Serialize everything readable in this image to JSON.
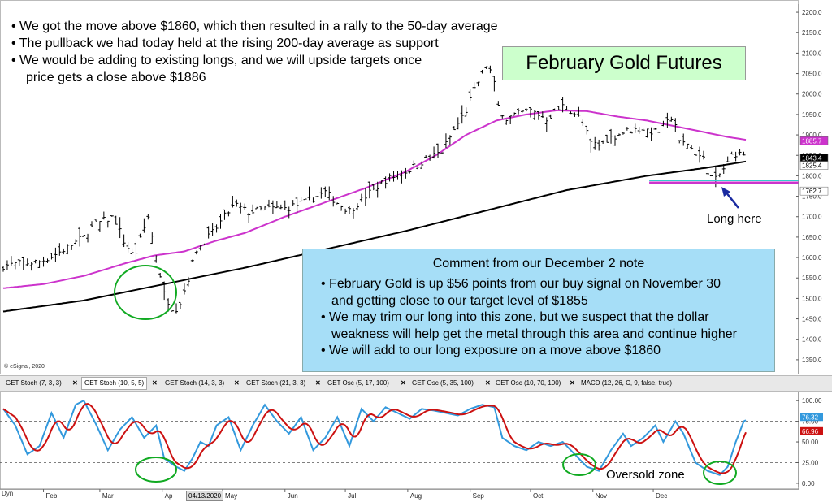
{
  "annotations": {
    "notes": [
      "• We got the move above $1860, which then resulted in a rally to the 50-day average",
      "• The pullback we had today held at the rising 200-day average as support",
      "• We would be adding to existing longs, and we will upside targets once",
      "price gets a close above $1886"
    ],
    "title": "February Gold Futures",
    "comment_head": "Comment from our December 2 note",
    "comment_lines": [
      "• February Gold is up $56 points from our buy signal on November 30",
      "and getting close to our target level of $1855",
      "• We may trim our long into this zone, but we suspect that the dollar",
      "weakness will help get the metal through this area and continue higher",
      "• We will add to our long exposure on a move above $1860"
    ],
    "long_here": "Long here",
    "oversold": "Oversold zone",
    "esignal": "© eSignal, 2020",
    "dyn": "Dyn",
    "date_box": "04/13/2020"
  },
  "tabs": [
    "GET Stoch (7, 3, 3)",
    "GET Stoch (10, 5, 5)",
    "GET Stoch (14, 3, 3)",
    "GET Stoch (21, 3, 3)",
    "GET Osc (5, 17, 100)",
    "GET Osc (5, 35, 100)",
    "GET Osc (10, 70, 100)",
    "MACD (12, 26, C, 9, false, true)"
  ],
  "colors": {
    "price": "#000000",
    "ma50": "#cc33cc",
    "ma200": "#000000",
    "stoch_fast": "#3399dd",
    "stoch_slow": "#cc1111",
    "circle": "#11aa22",
    "support_line": "#cc33cc",
    "support_line2": "#33cccc",
    "arrow": "#1a2aa0"
  },
  "chart_data": [
    {
      "type": "ohlc",
      "x_labels": [
        "Feb",
        "Mar",
        "Ap",
        "May",
        "Jun",
        "Jul",
        "Aug",
        "Sep",
        "Oct",
        "Nov",
        "Dec"
      ],
      "ylim": [
        1320,
        2220
      ],
      "y_ticks": [
        1350,
        1400,
        1450,
        1500,
        1550,
        1600,
        1650,
        1700,
        1750,
        1800,
        1850,
        1900,
        1950,
        2000,
        2050,
        2100,
        2150,
        2200
      ],
      "y_tick_labels": [
        "1350.0",
        "1400.0",
        "1450.0",
        "1500.0",
        "1550.0",
        "1600.0",
        "1650.0",
        "1700.0",
        "1750.0",
        "1800.0",
        "1850.0",
        "1900.0",
        "1950.0",
        "2000.0",
        "2050.0",
        "2100.0",
        "2150.0",
        "2200.0"
      ],
      "price_keys": [
        [
          0,
          1580
        ],
        [
          8,
          1585
        ],
        [
          18,
          1590
        ],
        [
          25,
          1605
        ],
        [
          32,
          1625
        ],
        [
          40,
          1650
        ],
        [
          45,
          1680
        ],
        [
          55,
          1700
        ],
        [
          60,
          1640
        ],
        [
          65,
          1600
        ],
        [
          72,
          1700
        ],
        [
          80,
          1510
        ],
        [
          85,
          1470
        ],
        [
          88,
          1490
        ],
        [
          92,
          1550
        ],
        [
          96,
          1620
        ],
        [
          100,
          1640
        ],
        [
          104,
          1660
        ],
        [
          110,
          1700
        ],
        [
          115,
          1730
        ],
        [
          122,
          1710
        ],
        [
          130,
          1720
        ],
        [
          140,
          1720
        ],
        [
          150,
          1735
        ],
        [
          160,
          1760
        ],
        [
          167,
          1730
        ],
        [
          172,
          1715
        ],
        [
          180,
          1750
        ],
        [
          190,
          1790
        ],
        [
          200,
          1810
        ],
        [
          210,
          1840
        ],
        [
          218,
          1860
        ],
        [
          225,
          1920
        ],
        [
          230,
          1960
        ],
        [
          235,
          2020
        ],
        [
          240,
          2070
        ],
        [
          243,
          2050
        ],
        [
          246,
          1970
        ],
        [
          250,
          1940
        ],
        [
          255,
          1950
        ],
        [
          262,
          1960
        ],
        [
          270,
          1940
        ],
        [
          278,
          1970
        ],
        [
          282,
          1960
        ],
        [
          287,
          1940
        ],
        [
          292,
          1880
        ],
        [
          296,
          1875
        ],
        [
          300,
          1890
        ],
        [
          305,
          1900
        ],
        [
          310,
          1910
        ],
        [
          318,
          1915
        ],
        [
          325,
          1905
        ],
        [
          330,
          1930
        ],
        [
          333,
          1950
        ],
        [
          336,
          1880
        ],
        [
          340,
          1880
        ],
        [
          343,
          1860
        ],
        [
          348,
          1840
        ],
        [
          351,
          1800
        ],
        [
          354,
          1790
        ],
        [
          357,
          1810
        ],
        [
          360,
          1830
        ],
        [
          363,
          1860
        ],
        [
          365,
          1850
        ],
        [
          369,
          1855
        ]
      ],
      "ma50_keys": [
        [
          0,
          1525
        ],
        [
          20,
          1535
        ],
        [
          40,
          1555
        ],
        [
          60,
          1585
        ],
        [
          75,
          1605
        ],
        [
          90,
          1615
        ],
        [
          105,
          1640
        ],
        [
          120,
          1660
        ],
        [
          140,
          1700
        ],
        [
          160,
          1735
        ],
        [
          180,
          1770
        ],
        [
          200,
          1810
        ],
        [
          215,
          1850
        ],
        [
          230,
          1900
        ],
        [
          245,
          1935
        ],
        [
          260,
          1950
        ],
        [
          275,
          1960
        ],
        [
          290,
          1958
        ],
        [
          305,
          1945
        ],
        [
          320,
          1935
        ],
        [
          335,
          1920
        ],
        [
          350,
          1905
        ],
        [
          360,
          1895
        ],
        [
          369,
          1888
        ]
      ],
      "ma200_keys": [
        [
          0,
          1468
        ],
        [
          40,
          1495
        ],
        [
          80,
          1535
        ],
        [
          120,
          1575
        ],
        [
          160,
          1620
        ],
        [
          200,
          1665
        ],
        [
          240,
          1715
        ],
        [
          280,
          1765
        ],
        [
          320,
          1800
        ],
        [
          350,
          1820
        ],
        [
          369,
          1835
        ]
      ],
      "last_labels": [
        {
          "value": 1885.7,
          "text": "1885.7"
        },
        {
          "value": 1843.4,
          "text": "1843.4"
        },
        {
          "value": 1825.4,
          "text": "1825.4"
        },
        {
          "value": 1762.7,
          "text": "1762.7"
        }
      ],
      "support_level": 1785,
      "series": [
        {
          "name": "50-day average"
        },
        {
          "name": "200-day average"
        }
      ]
    },
    {
      "type": "line",
      "ylim": [
        -5,
        110
      ],
      "y_ticks": [
        0,
        25,
        50,
        75,
        100
      ],
      "y_tick_labels": [
        "0.00",
        "25.00",
        "50.00",
        "75.00",
        "100.00"
      ],
      "dashed_levels": [
        25,
        75
      ],
      "last_labels": [
        {
          "value": 76.32,
          "text": "76.32"
        },
        {
          "value": 66.96,
          "text": "66.96"
        }
      ],
      "stoch_keys": [
        [
          0,
          90
        ],
        [
          6,
          70
        ],
        [
          12,
          35
        ],
        [
          18,
          45
        ],
        [
          24,
          85
        ],
        [
          30,
          55
        ],
        [
          36,
          95
        ],
        [
          40,
          100
        ],
        [
          46,
          72
        ],
        [
          52,
          40
        ],
        [
          58,
          65
        ],
        [
          64,
          80
        ],
        [
          70,
          55
        ],
        [
          76,
          70
        ],
        [
          80,
          30
        ],
        [
          86,
          20
        ],
        [
          90,
          15
        ],
        [
          94,
          30
        ],
        [
          98,
          50
        ],
        [
          102,
          45
        ],
        [
          106,
          70
        ],
        [
          112,
          80
        ],
        [
          118,
          40
        ],
        [
          124,
          70
        ],
        [
          130,
          95
        ],
        [
          136,
          75
        ],
        [
          142,
          60
        ],
        [
          148,
          80
        ],
        [
          154,
          40
        ],
        [
          160,
          55
        ],
        [
          166,
          80
        ],
        [
          172,
          45
        ],
        [
          178,
          90
        ],
        [
          184,
          75
        ],
        [
          190,
          92
        ],
        [
          196,
          85
        ],
        [
          202,
          78
        ],
        [
          208,
          90
        ],
        [
          214,
          88
        ],
        [
          220,
          85
        ],
        [
          226,
          82
        ],
        [
          232,
          90
        ],
        [
          238,
          95
        ],
        [
          244,
          92
        ],
        [
          248,
          55
        ],
        [
          254,
          45
        ],
        [
          260,
          40
        ],
        [
          266,
          50
        ],
        [
          272,
          45
        ],
        [
          278,
          50
        ],
        [
          284,
          35
        ],
        [
          290,
          20
        ],
        [
          296,
          15
        ],
        [
          302,
          40
        ],
        [
          308,
          60
        ],
        [
          312,
          45
        ],
        [
          318,
          55
        ],
        [
          324,
          70
        ],
        [
          328,
          50
        ],
        [
          334,
          75
        ],
        [
          338,
          60
        ],
        [
          344,
          25
        ],
        [
          350,
          15
        ],
        [
          356,
          10
        ],
        [
          360,
          20
        ],
        [
          364,
          50
        ],
        [
          368,
          75
        ],
        [
          369,
          76.32
        ]
      ]
    }
  ]
}
